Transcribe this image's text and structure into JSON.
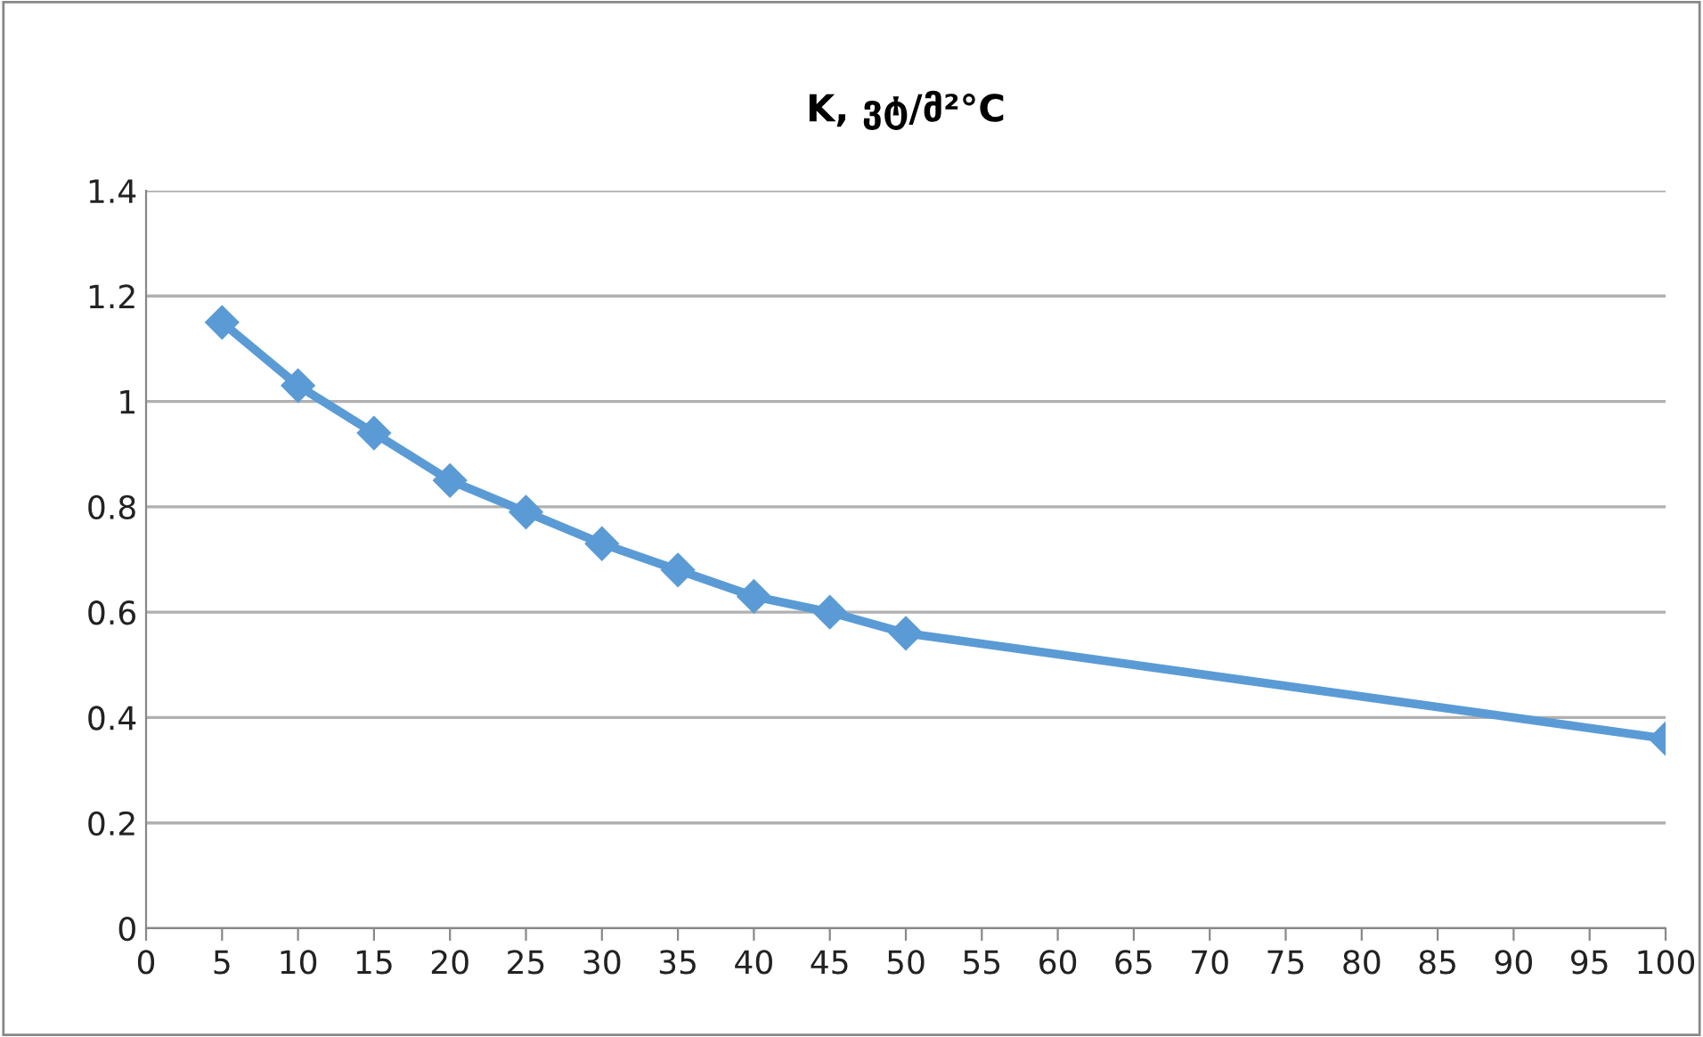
{
  "chart_data": {
    "type": "line",
    "title": "K, ვტ/მ²°C",
    "x": [
      5,
      10,
      15,
      20,
      25,
      30,
      35,
      40,
      45,
      50,
      100
    ],
    "series": [
      {
        "color": "#5b9bd5",
        "values": [
          1.15,
          1.03,
          0.94,
          0.85,
          0.79,
          0.73,
          0.68,
          0.63,
          0.6,
          0.56,
          0.36
        ]
      }
    ],
    "xlim": [
      0,
      100
    ],
    "xticks": [
      0,
      5,
      10,
      15,
      20,
      25,
      30,
      35,
      40,
      45,
      50,
      55,
      60,
      65,
      70,
      75,
      80,
      85,
      90,
      95,
      100
    ],
    "ylim": [
      0,
      1.4
    ],
    "yticks": [
      0,
      0.2,
      0.4,
      0.6,
      0.8,
      1,
      1.2,
      1.4
    ],
    "grid": "y",
    "marker": "diamond",
    "line_style": "solid",
    "legend": false
  }
}
